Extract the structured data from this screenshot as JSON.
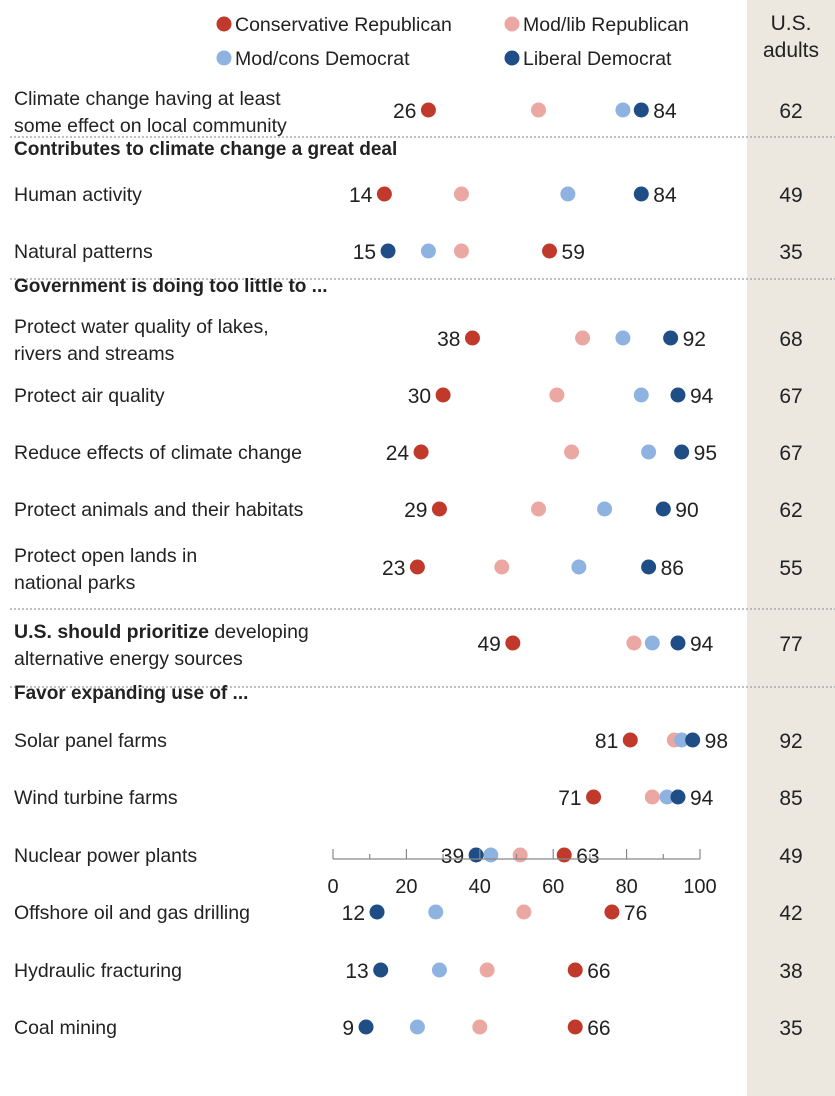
{
  "chart_data": {
    "type": "scatter",
    "adults_header": [
      "U.S.",
      "adults"
    ],
    "legend": [
      {
        "name": "Conservative Republican",
        "color": "#c0392b"
      },
      {
        "name": "Mod/lib Republican",
        "color": "#eba7a1"
      },
      {
        "name": "Mod/cons Democrat",
        "color": "#8fb3e0"
      },
      {
        "name": "Liberal Democrat",
        "color": "#1f4e86"
      }
    ],
    "xlim": [
      0,
      100
    ],
    "x_ticks": [
      "0",
      "20",
      "40",
      "60",
      "80",
      "100"
    ],
    "rows": [
      {
        "kind": "item",
        "label": [
          "Climate change having at least",
          "some effect on local community"
        ],
        "cons_rep": 26,
        "mod_rep": 56,
        "mod_dem": 79,
        "lib_dem": 84,
        "adults": "62",
        "left_label": "26",
        "right_label": "84"
      },
      {
        "kind": "divider"
      },
      {
        "kind": "header",
        "label": "Contributes to climate change a great deal"
      },
      {
        "kind": "item",
        "label": [
          "Human activity"
        ],
        "cons_rep": 14,
        "mod_rep": 35,
        "mod_dem": 64,
        "lib_dem": 84,
        "adults": "49",
        "left_label": "14",
        "right_label": "84"
      },
      {
        "kind": "item",
        "label": [
          "Natural patterns"
        ],
        "cons_rep": 59,
        "mod_rep": 35,
        "mod_dem": 26,
        "lib_dem": 15,
        "adults": "35",
        "left_label": "15",
        "right_label": "59"
      },
      {
        "kind": "divider"
      },
      {
        "kind": "header",
        "label": "Government is doing too little to ..."
      },
      {
        "kind": "item",
        "label": [
          "Protect water quality of lakes,",
          "rivers and streams"
        ],
        "cons_rep": 38,
        "mod_rep": 68,
        "mod_dem": 79,
        "lib_dem": 92,
        "adults": "68",
        "left_label": "38",
        "right_label": "92"
      },
      {
        "kind": "item",
        "label": [
          "Protect air quality"
        ],
        "cons_rep": 30,
        "mod_rep": 61,
        "mod_dem": 84,
        "lib_dem": 94,
        "adults": "67",
        "left_label": "30",
        "right_label": "94"
      },
      {
        "kind": "item",
        "label": [
          "Reduce effects of climate change"
        ],
        "cons_rep": 24,
        "mod_rep": 65,
        "mod_dem": 86,
        "lib_dem": 95,
        "adults": "67",
        "left_label": "24",
        "right_label": "95"
      },
      {
        "kind": "item",
        "label": [
          "Protect animals and their habitats"
        ],
        "cons_rep": 29,
        "mod_rep": 56,
        "mod_dem": 74,
        "lib_dem": 90,
        "adults": "62",
        "left_label": "29",
        "right_label": "90"
      },
      {
        "kind": "item",
        "label": [
          "Protect open lands in",
          "national parks"
        ],
        "cons_rep": 23,
        "mod_rep": 46,
        "mod_dem": 67,
        "lib_dem": 86,
        "adults": "55",
        "left_label": "23",
        "right_label": "86"
      },
      {
        "kind": "divider"
      },
      {
        "kind": "item",
        "label_bold": "U.S. should prioritize",
        "label": [
          " developing",
          "alternative energy sources"
        ],
        "cons_rep": 49,
        "mod_rep": 82,
        "mod_dem": 87,
        "lib_dem": 94,
        "adults": "77",
        "left_label": "49",
        "right_label": "94"
      },
      {
        "kind": "divider"
      },
      {
        "kind": "header",
        "label": "Favor expanding use of ..."
      },
      {
        "kind": "item",
        "label": [
          "Solar panel farms"
        ],
        "cons_rep": 81,
        "mod_rep": 93,
        "mod_dem": 95,
        "lib_dem": 98,
        "adults": "92",
        "left_label": "81",
        "right_label": "98"
      },
      {
        "kind": "item",
        "label": [
          "Wind turbine farms"
        ],
        "cons_rep": 71,
        "mod_rep": 87,
        "mod_dem": 91,
        "lib_dem": 94,
        "adults": "85",
        "left_label": "71",
        "right_label": "94"
      },
      {
        "kind": "item",
        "label": [
          "Nuclear power plants"
        ],
        "cons_rep": 63,
        "mod_rep": 51,
        "mod_dem": 43,
        "lib_dem": 39,
        "adults": "49",
        "left_label": "39",
        "right_label": "63"
      },
      {
        "kind": "item",
        "label": [
          "Offshore oil and gas drilling"
        ],
        "cons_rep": 76,
        "mod_rep": 52,
        "mod_dem": 28,
        "lib_dem": 12,
        "adults": "42",
        "left_label": "12",
        "right_label": "76"
      },
      {
        "kind": "item",
        "label": [
          "Hydraulic fracturing"
        ],
        "cons_rep": 66,
        "mod_rep": 42,
        "mod_dem": 29,
        "lib_dem": 13,
        "adults": "38",
        "left_label": "13",
        "right_label": "66"
      },
      {
        "kind": "item",
        "label": [
          "Coal mining"
        ],
        "cons_rep": 66,
        "mod_rep": 40,
        "mod_dem": 23,
        "lib_dem": 9,
        "adults": "35",
        "left_label": "9",
        "right_label": "66"
      }
    ]
  }
}
